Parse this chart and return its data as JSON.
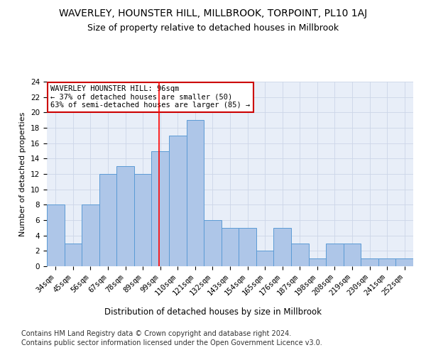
{
  "title": "WAVERLEY, HOUNSTER HILL, MILLBROOK, TORPOINT, PL10 1AJ",
  "subtitle": "Size of property relative to detached houses in Millbrook",
  "xlabel": "Distribution of detached houses by size in Millbrook",
  "ylabel": "Number of detached properties",
  "categories": [
    "34sqm",
    "45sqm",
    "56sqm",
    "67sqm",
    "78sqm",
    "89sqm",
    "99sqm",
    "110sqm",
    "121sqm",
    "132sqm",
    "143sqm",
    "154sqm",
    "165sqm",
    "176sqm",
    "187sqm",
    "198sqm",
    "208sqm",
    "219sqm",
    "230sqm",
    "241sqm",
    "252sqm"
  ],
  "values": [
    8,
    3,
    8,
    12,
    13,
    12,
    15,
    17,
    19,
    6,
    5,
    5,
    2,
    5,
    3,
    1,
    3,
    3,
    1,
    1,
    1
  ],
  "bar_color": "#aec6e8",
  "bar_edge_color": "#5b9bd5",
  "red_line_index": 5.92,
  "annotation_text": "WAVERLEY HOUNSTER HILL: 96sqm\n← 37% of detached houses are smaller (50)\n63% of semi-detached houses are larger (85) →",
  "annotation_box_color": "#ffffff",
  "annotation_box_edge_color": "#cc0000",
  "ylim": [
    0,
    24
  ],
  "yticks": [
    0,
    2,
    4,
    6,
    8,
    10,
    12,
    14,
    16,
    18,
    20,
    22,
    24
  ],
  "grid_color": "#ccd6e8",
  "background_color": "#e8eef8",
  "footer_line1": "Contains HM Land Registry data © Crown copyright and database right 2024.",
  "footer_line2": "Contains public sector information licensed under the Open Government Licence v3.0.",
  "title_fontsize": 10,
  "subtitle_fontsize": 9,
  "xlabel_fontsize": 8.5,
  "ylabel_fontsize": 8,
  "tick_fontsize": 7.5,
  "annotation_fontsize": 7.5,
  "footer_fontsize": 7
}
